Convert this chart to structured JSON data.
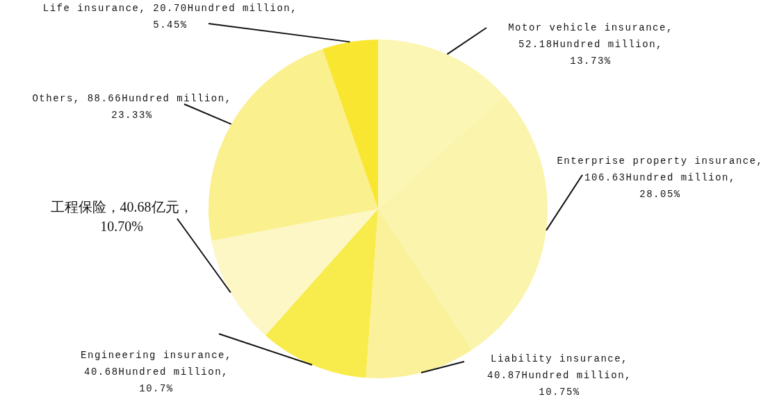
{
  "chart_data": {
    "type": "pie",
    "categories": [
      "Motor vehicle insurance",
      "Enterprise property insurance",
      "Liability insurance",
      "Engineering insurance",
      "工程保险",
      "Others",
      "Life insurance"
    ],
    "values": [
      52.18,
      106.63,
      40.87,
      40.68,
      40.68,
      88.66,
      20.7
    ],
    "colors": [
      "#fcf6b4",
      "#fbf4ac",
      "#faf19a",
      "#f8ec4c",
      "#fcf7c4",
      "#faf08e",
      "#f9e630"
    ],
    "value_labels": [
      ",\n52.18Hundred million,\n13.73%",
      ",\n106.63Hundred million,\n28.05%",
      ",\n40.87Hundred million,\n10.75%",
      ",\n40.68Hundred million,\n10.7%",
      "，40.68亿元，\n10.70%",
      ", 88.66Hundred million,\n23.33%",
      ", 20.70Hundred million,\n5.45%"
    ]
  }
}
